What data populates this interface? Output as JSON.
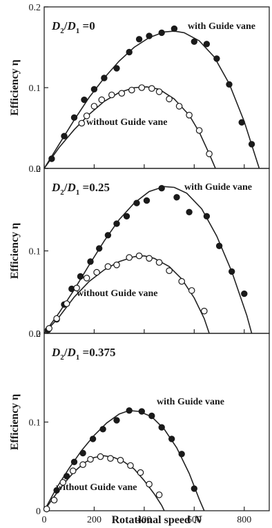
{
  "chart_data": [
    {
      "type": "scatter",
      "panel_label": {
        "lhs": "D",
        "lhs_sub": "2",
        "sep": "/",
        "rhs": "D",
        "rhs_sub": "1",
        "value": " =0"
      },
      "ylabel": "Efficiency η",
      "ylim": [
        0,
        0.2
      ],
      "xlim": [
        0,
        900
      ],
      "yticks": [
        "0",
        "0.1",
        "0.2"
      ],
      "series": [
        {
          "name": "with Guide vane",
          "marker": "filled",
          "points": [
            [
              30,
              0.012
            ],
            [
              80,
              0.04
            ],
            [
              120,
              0.063
            ],
            [
              160,
              0.085
            ],
            [
              200,
              0.098
            ],
            [
              240,
              0.112
            ],
            [
              290,
              0.124
            ],
            [
              340,
              0.144
            ],
            [
              380,
              0.16
            ],
            [
              420,
              0.164
            ],
            [
              470,
              0.168
            ],
            [
              520,
              0.173
            ],
            [
              600,
              0.157
            ],
            [
              650,
              0.154
            ],
            [
              690,
              0.136
            ],
            [
              740,
              0.104
            ],
            [
              790,
              0.057
            ],
            [
              830,
              0.03
            ]
          ],
          "curve": [
            [
              0,
              0
            ],
            [
              60,
              0.03
            ],
            [
              120,
              0.06
            ],
            [
              180,
              0.088
            ],
            [
              240,
              0.112
            ],
            [
              300,
              0.133
            ],
            [
              360,
              0.15
            ],
            [
              420,
              0.162
            ],
            [
              480,
              0.169
            ],
            [
              520,
              0.17
            ],
            [
              560,
              0.168
            ],
            [
              620,
              0.158
            ],
            [
              680,
              0.138
            ],
            [
              740,
              0.105
            ],
            [
              800,
              0.058
            ],
            [
              860,
              0.0
            ]
          ]
        },
        {
          "name": "without Guide vane",
          "marker": "open",
          "points": [
            [
              150,
              0.056
            ],
            [
              170,
              0.065
            ],
            [
              200,
              0.077
            ],
            [
              230,
              0.085
            ],
            [
              270,
              0.091
            ],
            [
              310,
              0.093
            ],
            [
              350,
              0.097
            ],
            [
              390,
              0.1
            ],
            [
              430,
              0.099
            ],
            [
              460,
              0.095
            ],
            [
              500,
              0.086
            ],
            [
              540,
              0.077
            ],
            [
              580,
              0.066
            ],
            [
              620,
              0.047
            ],
            [
              660,
              0.018
            ]
          ],
          "curve": [
            [
              0,
              0
            ],
            [
              60,
              0.026
            ],
            [
              120,
              0.048
            ],
            [
              180,
              0.067
            ],
            [
              240,
              0.083
            ],
            [
              300,
              0.094
            ],
            [
              360,
              0.1
            ],
            [
              410,
              0.101
            ],
            [
              460,
              0.098
            ],
            [
              520,
              0.086
            ],
            [
              580,
              0.066
            ],
            [
              620,
              0.045
            ],
            [
              660,
              0.018
            ],
            [
              685,
              0.0
            ]
          ]
        }
      ],
      "annotations": [
        "with Guide vane",
        "without Guide vane"
      ]
    },
    {
      "type": "scatter",
      "panel_label": {
        "lhs": "D",
        "lhs_sub": "2",
        "sep": "/",
        "rhs": "D",
        "rhs_sub": "1",
        "value": " =0.25"
      },
      "ylabel": "Efficiency η",
      "ylim": [
        0,
        0.2
      ],
      "xlim": [
        0,
        900
      ],
      "yticks": [
        "0",
        "0.1",
        "0.2"
      ],
      "series": [
        {
          "name": "with Guide vane",
          "marker": "filled",
          "points": [
            [
              15,
              0.004
            ],
            [
              50,
              0.017
            ],
            [
              80,
              0.035
            ],
            [
              110,
              0.054
            ],
            [
              145,
              0.069
            ],
            [
              185,
              0.087
            ],
            [
              220,
              0.103
            ],
            [
              255,
              0.119
            ],
            [
              290,
              0.133
            ],
            [
              330,
              0.142
            ],
            [
              370,
              0.158
            ],
            [
              410,
              0.161
            ],
            [
              470,
              0.176
            ],
            [
              530,
              0.165
            ],
            [
              580,
              0.147
            ],
            [
              650,
              0.142
            ],
            [
              700,
              0.106
            ],
            [
              750,
              0.075
            ],
            [
              800,
              0.048
            ]
          ],
          "curve": [
            [
              0,
              0
            ],
            [
              60,
              0.025
            ],
            [
              120,
              0.053
            ],
            [
              180,
              0.083
            ],
            [
              240,
              0.112
            ],
            [
              300,
              0.138
            ],
            [
              360,
              0.158
            ],
            [
              420,
              0.172
            ],
            [
              480,
              0.178
            ],
            [
              520,
              0.177
            ],
            [
              570,
              0.17
            ],
            [
              630,
              0.151
            ],
            [
              690,
              0.118
            ],
            [
              750,
              0.075
            ],
            [
              810,
              0.022
            ],
            [
              830,
              0.0
            ]
          ]
        },
        {
          "name": "without Guide vane",
          "marker": "open",
          "points": [
            [
              20,
              0.006
            ],
            [
              50,
              0.018
            ],
            [
              90,
              0.036
            ],
            [
              130,
              0.055
            ],
            [
              170,
              0.067
            ],
            [
              210,
              0.074
            ],
            [
              255,
              0.081
            ],
            [
              290,
              0.083
            ],
            [
              340,
              0.092
            ],
            [
              380,
              0.094
            ],
            [
              420,
              0.091
            ],
            [
              460,
              0.086
            ],
            [
              500,
              0.076
            ],
            [
              550,
              0.063
            ],
            [
              590,
              0.052
            ],
            [
              640,
              0.027
            ]
          ],
          "curve": [
            [
              0,
              0
            ],
            [
              60,
              0.02
            ],
            [
              120,
              0.044
            ],
            [
              180,
              0.063
            ],
            [
              240,
              0.077
            ],
            [
              300,
              0.087
            ],
            [
              360,
              0.093
            ],
            [
              400,
              0.094
            ],
            [
              440,
              0.091
            ],
            [
              500,
              0.081
            ],
            [
              550,
              0.066
            ],
            [
              600,
              0.043
            ],
            [
              640,
              0.018
            ],
            [
              660,
              0.0
            ]
          ]
        }
      ],
      "annotations": [
        "with Guide vane",
        "without Guide vane"
      ]
    },
    {
      "type": "scatter",
      "panel_label": {
        "lhs": "D",
        "lhs_sub": "2",
        "sep": "/",
        "rhs": "D",
        "rhs_sub": "1",
        "value": " =0.375"
      },
      "xlabel": "Rotational speed",
      "xlabel_var": "N",
      "ylabel": "Efficiency η",
      "ylim": [
        0,
        0.2
      ],
      "xlim": [
        0,
        900
      ],
      "xticks": [
        "0",
        "200",
        "400",
        "600",
        "800"
      ],
      "yticks": [
        "0",
        "0.1",
        "0.2"
      ],
      "series": [
        {
          "name": "with Guide vane",
          "marker": "filled",
          "points": [
            [
              50,
              0.023
            ],
            [
              90,
              0.039
            ],
            [
              120,
              0.055
            ],
            [
              155,
              0.065
            ],
            [
              195,
              0.081
            ],
            [
              235,
              0.092
            ],
            [
              290,
              0.102
            ],
            [
              340,
              0.113
            ],
            [
              390,
              0.112
            ],
            [
              430,
              0.107
            ],
            [
              470,
              0.094
            ],
            [
              510,
              0.081
            ],
            [
              550,
              0.064
            ],
            [
              600,
              0.025
            ]
          ],
          "curve": [
            [
              0,
              0
            ],
            [
              50,
              0.026
            ],
            [
              100,
              0.048
            ],
            [
              150,
              0.068
            ],
            [
              200,
              0.085
            ],
            [
              250,
              0.099
            ],
            [
              300,
              0.109
            ],
            [
              340,
              0.113
            ],
            [
              380,
              0.112
            ],
            [
              430,
              0.106
            ],
            [
              480,
              0.092
            ],
            [
              530,
              0.071
            ],
            [
              580,
              0.042
            ],
            [
              620,
              0.013
            ],
            [
              640,
              0.0
            ]
          ]
        },
        {
          "name": "without Guide vane",
          "marker": "open",
          "points": [
            [
              10,
              0.002
            ],
            [
              40,
              0.012
            ],
            [
              75,
              0.032
            ],
            [
              115,
              0.045
            ],
            [
              155,
              0.052
            ],
            [
              185,
              0.058
            ],
            [
              225,
              0.061
            ],
            [
              265,
              0.059
            ],
            [
              305,
              0.057
            ],
            [
              345,
              0.051
            ],
            [
              385,
              0.043
            ],
            [
              420,
              0.03
            ],
            [
              460,
              0.018
            ]
          ],
          "curve": [
            [
              0,
              0
            ],
            [
              40,
              0.016
            ],
            [
              80,
              0.031
            ],
            [
              120,
              0.044
            ],
            [
              160,
              0.054
            ],
            [
              200,
              0.06
            ],
            [
              240,
              0.062
            ],
            [
              280,
              0.06
            ],
            [
              320,
              0.055
            ],
            [
              360,
              0.047
            ],
            [
              400,
              0.034
            ],
            [
              440,
              0.019
            ],
            [
              470,
              0.006
            ],
            [
              480,
              0.0
            ]
          ]
        }
      ],
      "annotations": [
        "with Guide vane",
        "without Guide vane"
      ]
    }
  ]
}
